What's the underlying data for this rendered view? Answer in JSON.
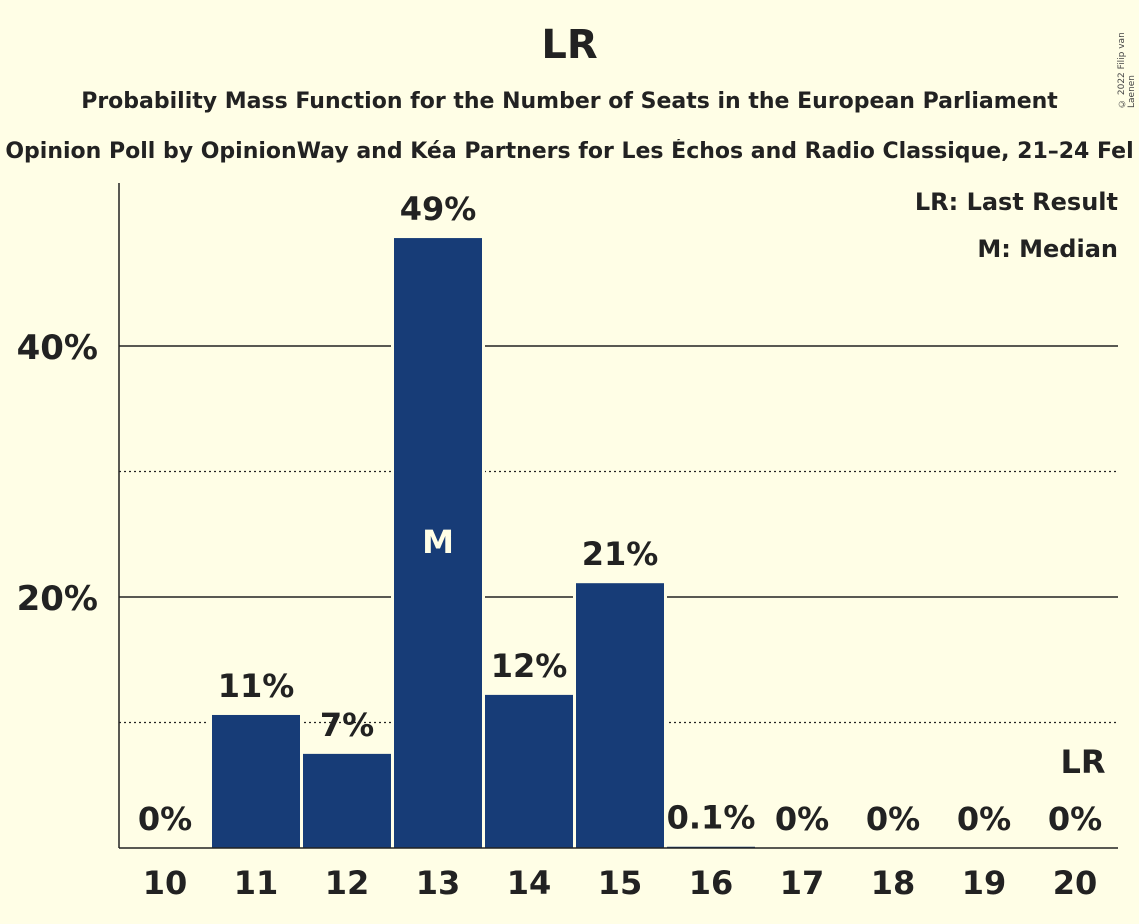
{
  "title": "LR",
  "subtitle": "Probability Mass Function for the Number of Seats in the European Parliament",
  "subtitle2": "Opinion Poll by OpinionWay and Kéa Partners for Les Échos and Radio Classique, 21–24 Fel",
  "copyright": "© 2022 Filip van Laenen",
  "legend": {
    "last_result": "LR: Last Result",
    "median": "M: Median"
  },
  "colors": {
    "bar": "#173C77",
    "background": "#FFFEE6"
  },
  "chart_data": {
    "type": "bar",
    "title": "LR",
    "categories": [
      "10",
      "11",
      "12",
      "13",
      "14",
      "15",
      "16",
      "17",
      "18",
      "19",
      "20"
    ],
    "values": [
      0,
      10.6,
      7.5,
      48.6,
      12.2,
      21.1,
      0.1,
      0,
      0,
      0,
      0
    ],
    "value_labels": [
      "0%",
      "11%",
      "7%",
      "49%",
      "12%",
      "21%",
      "0.1%",
      "0%",
      "0%",
      "0%",
      "0%"
    ],
    "yticks": [
      20,
      40
    ],
    "ytick_labels": [
      "20%",
      "40%"
    ],
    "minor_gridlines": [
      10,
      30
    ],
    "ylim": [
      0,
      53
    ],
    "median_category": "13",
    "median_marker": "M",
    "last_result_category": "20",
    "last_result_marker": "LR",
    "grid": true,
    "legend_position": "top-right"
  }
}
